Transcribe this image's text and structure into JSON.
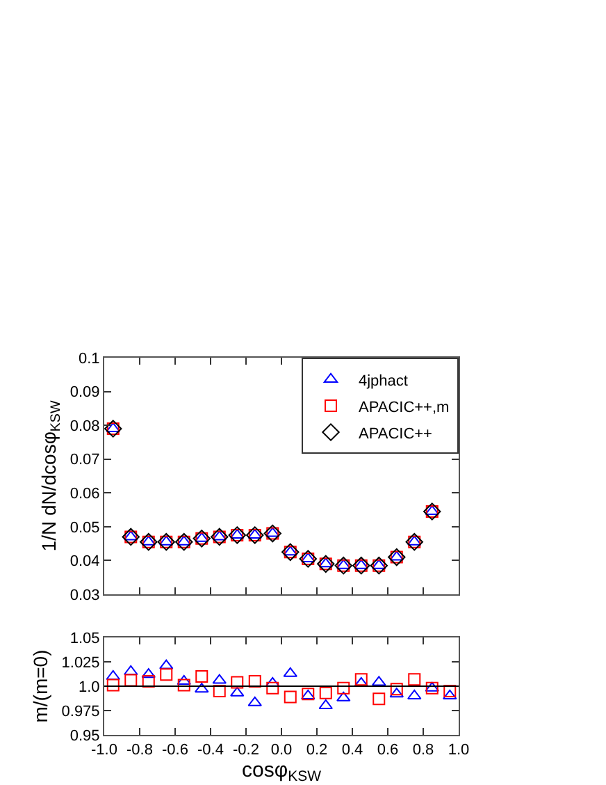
{
  "chart_data": [
    {
      "type": "scatter",
      "ylabel": "1/N dN/dcosφ$_{KSW}$",
      "x": [
        -0.95,
        -0.85,
        -0.75,
        -0.65,
        -0.55,
        -0.45,
        -0.35,
        -0.25,
        -0.15,
        -0.05,
        0.05,
        0.15,
        0.25,
        0.35,
        0.45,
        0.55,
        0.65,
        0.75,
        0.85
      ],
      "xlim": [
        -1,
        1
      ],
      "xticks": [
        {
          "value": -1,
          "label": null
        },
        {
          "value": -0.8,
          "label": null
        },
        {
          "value": -0.6,
          "label": null
        },
        {
          "value": -0.4,
          "label": null
        },
        {
          "value": -0.2,
          "label": null
        },
        {
          "value": 0,
          "label": null
        },
        {
          "value": 0.2,
          "label": null
        },
        {
          "value": 0.4,
          "label": null
        },
        {
          "value": 0.6,
          "label": null
        },
        {
          "value": 0.8,
          "label": null
        },
        {
          "value": 1,
          "label": null
        }
      ],
      "ylim": [
        0.03,
        0.1
      ],
      "yticks": [
        {
          "value": 0.03,
          "label": "0.03"
        },
        {
          "value": 0.04,
          "label": "0.04"
        },
        {
          "value": 0.05,
          "label": "0.05"
        },
        {
          "value": 0.06,
          "label": "0.06"
        },
        {
          "value": 0.07,
          "label": "0.07"
        },
        {
          "value": 0.08,
          "label": "0.08"
        },
        {
          "value": 0.09,
          "label": "0.09"
        },
        0.1
      ],
      "tick_labels": "y",
      "grid": false,
      "legend": "top right",
      "series": [
        {
          "name": "4jphact",
          "color": "#0000ff",
          "marker": "triangle",
          "values": [
            0.079,
            0.047,
            0.0455,
            0.0455,
            0.0455,
            0.0465,
            0.047,
            0.0475,
            0.0475,
            0.048,
            0.0425,
            0.0405,
            0.039,
            0.0385,
            0.0385,
            0.0385,
            0.041,
            0.0455,
            0.0545
          ]
        },
        {
          "name": "APACIC++,m",
          "color": "#ff0000",
          "marker": "square",
          "values": [
            0.079,
            0.047,
            0.0455,
            0.0455,
            0.0455,
            0.0465,
            0.047,
            0.0475,
            0.0475,
            0.048,
            0.0425,
            0.0405,
            0.039,
            0.0385,
            0.0385,
            0.0385,
            0.041,
            0.0455,
            0.0545
          ]
        },
        {
          "name": "APACIC++",
          "color": "#000000",
          "marker": "diamond",
          "values": [
            0.079,
            0.047,
            0.0455,
            0.0455,
            0.0455,
            0.0465,
            0.047,
            0.0475,
            0.0475,
            0.048,
            0.0425,
            0.0405,
            0.039,
            0.0385,
            0.0385,
            0.0385,
            0.041,
            0.0455,
            0.0545
          ]
        }
      ]
    },
    {
      "type": "scatter",
      "xlabel": "cosφ$_{KSW}$",
      "ylabel": "m/(m=0)",
      "x": [
        -0.95,
        -0.85,
        -0.75,
        -0.65,
        -0.55,
        -0.45,
        -0.35,
        -0.25,
        -0.15,
        -0.05,
        0.05,
        0.15,
        0.25,
        0.35,
        0.45,
        0.55,
        0.65,
        0.75,
        0.85,
        0.95
      ],
      "xlim": [
        -1,
        1
      ],
      "xticks": [
        {
          "value": -1,
          "label": "-1.0"
        },
        {
          "value": -0.8,
          "label": "-0.8"
        },
        {
          "value": -0.6,
          "label": "-0.6"
        },
        {
          "value": -0.4,
          "label": "-0.4"
        },
        {
          "value": -0.2,
          "label": "-0.2"
        },
        {
          "value": 0,
          "label": "0.0"
        },
        {
          "value": 0.2,
          "label": "0.2"
        },
        {
          "value": 0.4,
          "label": "0.4"
        },
        {
          "value": 0.6,
          "label": "0.6"
        },
        {
          "value": 0.8,
          "label": "0.8"
        },
        {
          "value": 1,
          "label": "1.0"
        }
      ],
      "ylim": [
        0.95,
        1.05
      ],
      "yticks": [
        0.95,
        0.975,
        {
          "value": 1,
          "label": "1.0"
        },
        1.025,
        1.05
      ],
      "grid": false,
      "legend": false,
      "ref_lines": [
        {
          "axis": "y",
          "value": 1,
          "color": "#000000"
        }
      ],
      "series": [
        {
          "color": "#0000ff",
          "marker": "triangle",
          "values": [
            1.01,
            1.015,
            1.012,
            1.021,
            1.005,
            0.997,
            1.006,
            0.993,
            0.983,
            1.003,
            1.013,
            0.99,
            0.98,
            0.988,
            1.003,
            1.004,
            0.992,
            0.99,
            0.998,
            0.99
          ]
        },
        {
          "color": "#ff0000",
          "marker": "square",
          "values": [
            1.001,
            1.006,
            1.005,
            1.012,
            1.001,
            1.01,
            0.995,
            1.004,
            1.005,
            0.998,
            0.989,
            0.992,
            0.993,
            0.998,
            1.007,
            0.987,
            0.997,
            1.007,
            0.998,
            0.995
          ]
        }
      ]
    }
  ]
}
